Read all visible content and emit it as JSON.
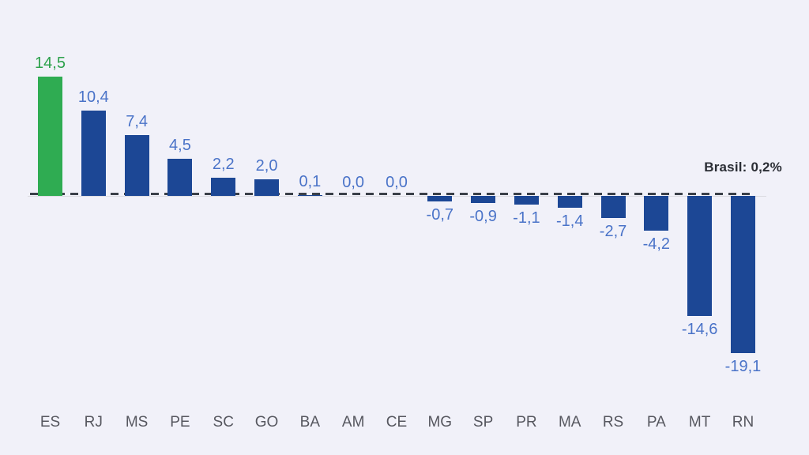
{
  "chart_data": {
    "type": "bar",
    "categories": [
      "ES",
      "RJ",
      "MS",
      "PE",
      "SC",
      "GO",
      "BA",
      "AM",
      "CE",
      "MG",
      "SP",
      "PR",
      "MA",
      "RS",
      "PA",
      "MT",
      "RN"
    ],
    "values": [
      14.5,
      10.4,
      7.4,
      4.5,
      2.2,
      2.0,
      0.1,
      0.0,
      0.0,
      -0.7,
      -0.9,
      -1.1,
      -1.4,
      -2.7,
      -4.2,
      -14.6,
      -19.1
    ],
    "value_labels": [
      "14,5",
      "10,4",
      "7,4",
      "4,5",
      "2,2",
      "2,0",
      "0,1",
      "0,0",
      "0,0",
      "-0,7",
      "-0,9",
      "-1,1",
      "-1,4",
      "-2,7",
      "-4,2",
      "-14,6",
      "-19,1"
    ],
    "title": "",
    "xlabel": "",
    "ylabel": "",
    "ylim": [
      -19.1,
      14.5
    ],
    "grid": false,
    "legend": false,
    "highlight_index": 0,
    "bar_colors": {
      "default": "#1C4795",
      "highlight": "#2FAC52"
    },
    "label_colors": {
      "default": "#4A73C8",
      "highlight": "#2CA14B"
    },
    "category_label_color": "#56575F",
    "background_color": "#F1F1F9",
    "axis_line_color": "#DBDBE1",
    "reference_line": {
      "label": "Brasil: 0,2%",
      "value": 0.2,
      "color": "#3A4049"
    }
  }
}
